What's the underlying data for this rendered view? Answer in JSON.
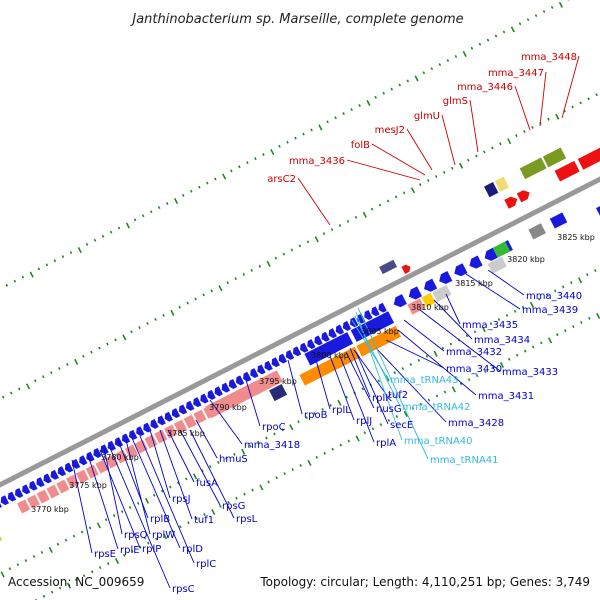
{
  "title": "Janthinobacterium sp. Marseille, complete genome",
  "footer": {
    "accession": "Accession: NC_009659",
    "topology": "Topology: circular; Length: 4,110,251 bp; Genes: 3,749"
  },
  "colors": {
    "forward_label": "#cc0000",
    "reverse_label": "#0000cc",
    "rna_label": "#33bbdd",
    "backbone": "#999999",
    "tick": "#228822"
  },
  "kbp_labels": [
    "3770 kbp",
    "3775 kbp",
    "3780 kbp",
    "3785 kbp",
    "3790 kbp",
    "3795 kbp",
    "3800 kbp",
    "3805 kbp",
    "3810 kbp",
    "3815 kbp",
    "3820 kbp",
    "3825 kbp"
  ],
  "top_labels": [
    "arsC2",
    "mma_3436",
    "folB",
    "mesJ2",
    "glmU",
    "glmS",
    "mma_3446",
    "mma_3447",
    "mma_3448"
  ],
  "bottom_labels": [
    "rpsE",
    "rplE",
    "rplP",
    "rpsC",
    "rpsQ",
    "rplB",
    "rplW",
    "rplD",
    "rplC",
    "rpsJ",
    "tuf1",
    "fusA",
    "rpsG",
    "rpsL",
    "hmuS",
    "mma_3418",
    "rpoC",
    "rpoB",
    "rplL",
    "rplJ",
    "rplA",
    "nusG",
    "secE",
    "tuf2",
    "rplK",
    "mma_3428",
    "mma_3430",
    "mma_3431",
    "mma_3432",
    "mma_3433",
    "mma_3434",
    "mma_3435",
    "mma_3439",
    "mma_3440"
  ],
  "rna_labels": [
    "mma_tRNA43",
    "mma_tRNA42",
    "mma_tRNA40",
    "mma_tRNA41"
  ]
}
